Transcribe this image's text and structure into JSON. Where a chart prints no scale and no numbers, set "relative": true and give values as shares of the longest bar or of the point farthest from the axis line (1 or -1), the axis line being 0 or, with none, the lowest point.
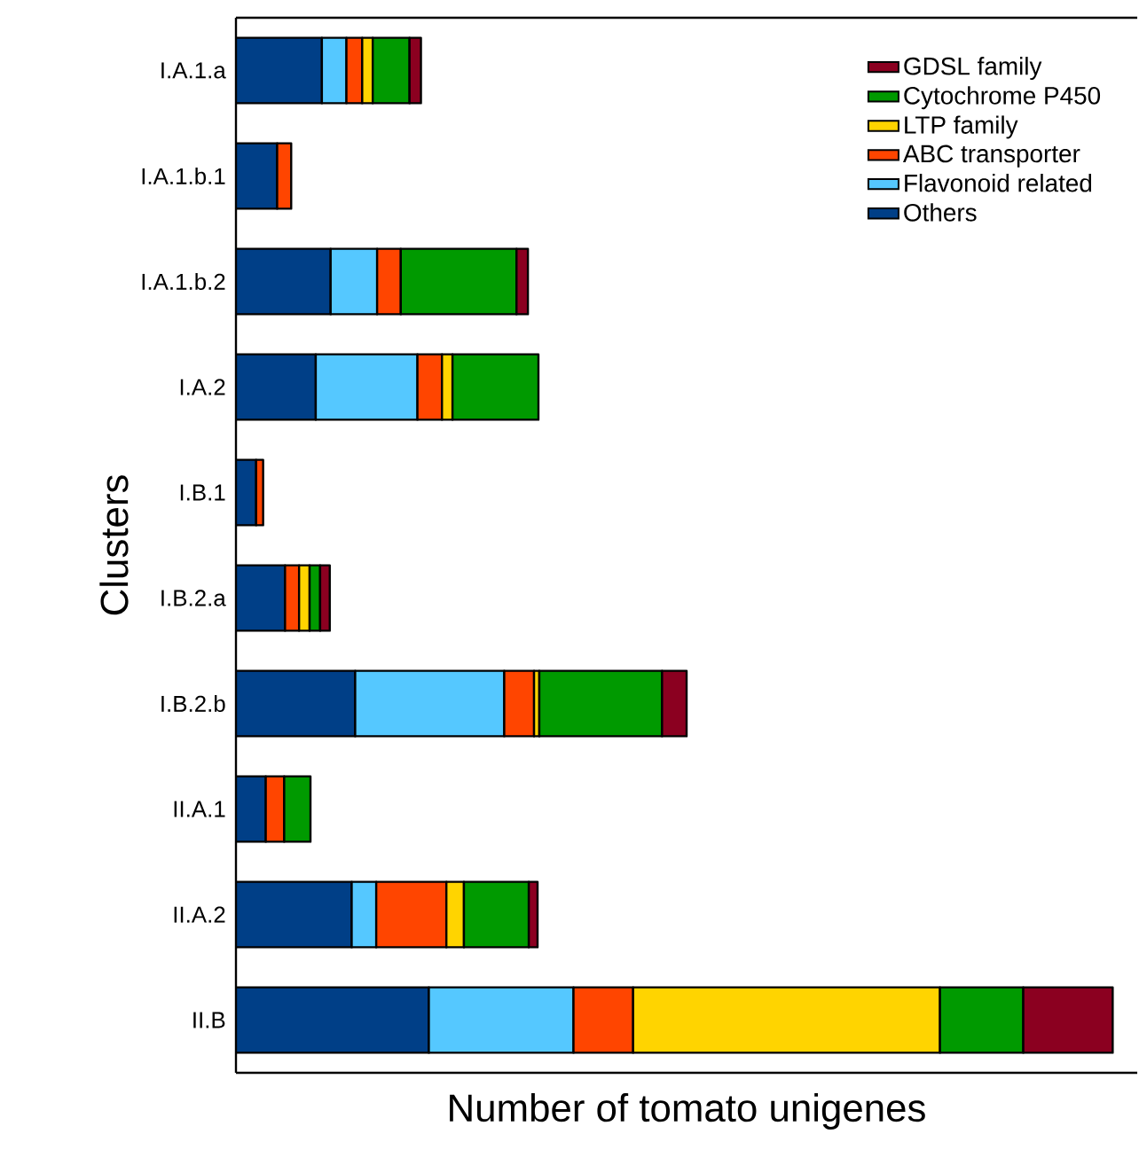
{
  "chart_data": {
    "type": "bar",
    "orientation": "horizontal",
    "stacked": true,
    "relative": true,
    "legend": "top right",
    "ylabel": "Clusters",
    "xlabel": "Number of tomato unigenes",
    "categories": [
      "I.A.1.a",
      "I.A.1.b.1",
      "I.A.1.b.2",
      "I.A.2",
      "I.B.1",
      "I.B.2.a",
      "I.B.2.b",
      "II.A.1",
      "II.A.2",
      "II.B"
    ],
    "series": [
      {
        "name": "Others",
        "color": "#003f87",
        "values": [
          0.098,
          0.047,
          0.108,
          0.091,
          0.023,
          0.056,
          0.136,
          0.034,
          0.132,
          0.22
        ]
      },
      {
        "name": "Flavonoid related",
        "color": "#55c8ff",
        "values": [
          0.028,
          null,
          0.053,
          0.116,
          null,
          null,
          0.17,
          null,
          0.028,
          0.165
        ]
      },
      {
        "name": "ABC transporter",
        "color": "#ff4500",
        "values": [
          0.018,
          0.016,
          0.027,
          0.028,
          0.008,
          0.016,
          0.034,
          0.021,
          0.08,
          0.068
        ]
      },
      {
        "name": "LTP family",
        "color": "#ffd400",
        "values": [
          0.012,
          null,
          null,
          0.012,
          null,
          0.012,
          0.006,
          null,
          0.02,
          0.35
        ]
      },
      {
        "name": "Cytochrome P450",
        "color": "#009a00",
        "values": [
          0.042,
          null,
          0.132,
          0.098,
          null,
          0.012,
          0.14,
          0.03,
          0.074,
          0.095
        ]
      },
      {
        "name": "GDSL family",
        "color": "#8b0020",
        "values": [
          0.013,
          null,
          0.013,
          null,
          null,
          0.011,
          0.028,
          null,
          0.01,
          0.102
        ]
      }
    ]
  }
}
